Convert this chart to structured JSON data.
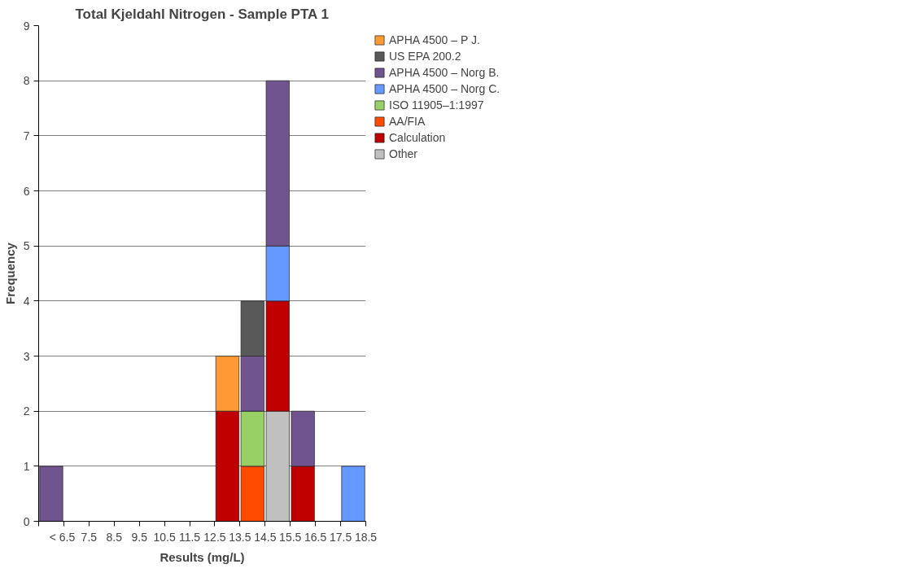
{
  "chart_data": {
    "type": "bar",
    "stacked": true,
    "title": "Total Kjeldahl Nitrogen - Sample PTA 1",
    "xlabel": "Results (mg/L)",
    "ylabel": "Frequency",
    "x": [
      6,
      13,
      14,
      15,
      16,
      18
    ],
    "series": [
      {
        "name": "Other",
        "color": "#c0c0c0",
        "values": [
          null,
          null,
          null,
          2,
          null,
          null
        ]
      },
      {
        "name": "Calculation",
        "color": "#c00000",
        "values": [
          null,
          2,
          null,
          2,
          1,
          null
        ]
      },
      {
        "name": "AA/FIA",
        "color": "#ff4b00",
        "values": [
          null,
          null,
          1,
          null,
          null,
          null
        ]
      },
      {
        "name": "ISO 11905–1:1997",
        "color": "#99d066",
        "values": [
          null,
          null,
          1,
          null,
          null,
          null
        ]
      },
      {
        "name": "APHA 4500 – Norg C.",
        "color": "#6699ff",
        "values": [
          null,
          null,
          null,
          1,
          null,
          1
        ]
      },
      {
        "name": "APHA 4500 – Norg B.",
        "color": "#6f548f",
        "values": [
          1,
          null,
          1,
          3,
          1,
          null
        ]
      },
      {
        "name": "US EPA 200.2",
        "color": "#595959",
        "values": [
          null,
          null,
          1,
          null,
          null,
          null
        ]
      },
      {
        "name": "APHA 4500 – P J.",
        "color": "#ff9933",
        "values": [
          null,
          1,
          null,
          null,
          null,
          null
        ]
      }
    ],
    "xlim": [
      5.5,
      18.5
    ],
    "xticks": [
      {
        "value": 5.5,
        "label": null
      },
      {
        "value": 6.5,
        "label": "<  6.5"
      },
      7.5,
      8.5,
      9.5,
      10.5,
      11.5,
      12.5,
      13.5,
      14.5,
      15.5,
      16.5,
      17.5,
      18.5
    ],
    "ylim": [
      0,
      9
    ],
    "yticks": [
      0,
      1,
      2,
      3,
      4,
      5,
      6,
      7,
      8,
      9
    ],
    "grid": "y",
    "legend": "top right"
  }
}
